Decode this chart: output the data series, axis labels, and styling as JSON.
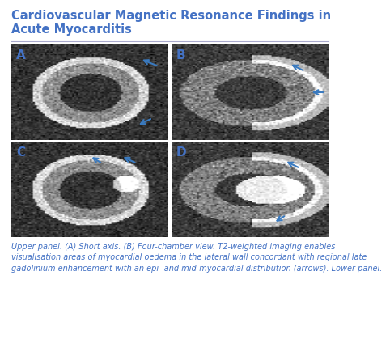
{
  "title_line1": "Cardiovascular Magnetic Resonance Findings in",
  "title_line2": "Acute Myocarditis",
  "title_color": "#4472C4",
  "title_fontsize": 10.5,
  "bg_color": "#FFFFFF",
  "caption_line1": "Upper panel. (A) Short axis. (B) Four-chamber view. T2-weighted imaging enables",
  "caption_line2": "visualisation areas of myocardial oedema in the lateral wall concordant with regional late",
  "caption_line3": "gadolinium enhancement with an epi- and mid-myocardial distribution (arrows). Lower panel.",
  "caption_color": "#4472C4",
  "caption_fontsize": 7.0,
  "panel_labels": [
    "A",
    "B",
    "C",
    "D"
  ],
  "panel_label_color": "#4472C4",
  "panel_label_fontsize": 11,
  "arrow_color": "#3A7ABF",
  "separator_color": "#AAAACC"
}
